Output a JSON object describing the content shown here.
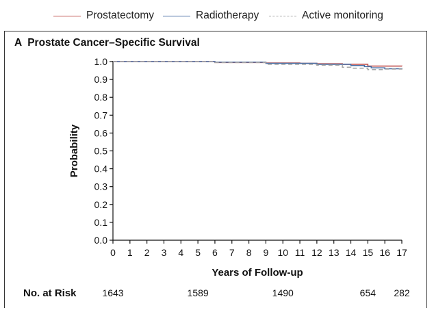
{
  "legend": [
    {
      "label": "Prostatectomy",
      "color": "#c0504d",
      "dash": "none"
    },
    {
      "label": "Radiotherapy",
      "color": "#4a6fa5",
      "dash": "none"
    },
    {
      "label": "Active monitoring",
      "color": "#a6a6a6",
      "dash": "6,4"
    }
  ],
  "panel": {
    "letter": "A",
    "title": "Prostate Cancer–Specific Survival"
  },
  "chart_data": {
    "type": "line",
    "title": "Prostate Cancer–Specific Survival",
    "xlabel": "Years of Follow-up",
    "ylabel": "Probability",
    "xlim": [
      0,
      17
    ],
    "ylim": [
      0,
      1.0
    ],
    "xticks": [
      0,
      1,
      2,
      3,
      4,
      5,
      6,
      7,
      8,
      9,
      10,
      11,
      12,
      13,
      14,
      15,
      16,
      17
    ],
    "yticks": [
      "0.0",
      "0.1",
      "0.2",
      "0.3",
      "0.4",
      "0.5",
      "0.6",
      "0.7",
      "0.8",
      "0.9",
      "1.0"
    ],
    "grid": false,
    "series": [
      {
        "name": "Prostatectomy",
        "color": "#c0504d",
        "dash": "none",
        "x": [
          0,
          6,
          9,
          11,
          12,
          13.5,
          15,
          17
        ],
        "y": [
          1.0,
          0.995,
          0.992,
          0.99,
          0.988,
          0.985,
          0.975,
          0.973
        ]
      },
      {
        "name": "Radiotherapy",
        "color": "#4a6fa5",
        "dash": "none",
        "x": [
          0,
          6,
          9,
          12,
          13,
          14,
          14.8,
          15.2,
          16,
          17
        ],
        "y": [
          1.0,
          0.997,
          0.99,
          0.985,
          0.985,
          0.978,
          0.972,
          0.965,
          0.96,
          0.958
        ]
      },
      {
        "name": "Active monitoring",
        "color": "#a6a6a6",
        "dash": "6,4",
        "x": [
          0,
          6,
          9,
          12,
          13.5,
          14,
          15,
          16,
          17
        ],
        "y": [
          1.0,
          0.995,
          0.985,
          0.98,
          0.968,
          0.963,
          0.955,
          0.958,
          0.955
        ]
      }
    ],
    "risk": {
      "label": "No. at Risk",
      "x": [
        0,
        5,
        10,
        15,
        17
      ],
      "values": [
        "1643",
        "1589",
        "1490",
        "654",
        "282"
      ]
    }
  }
}
